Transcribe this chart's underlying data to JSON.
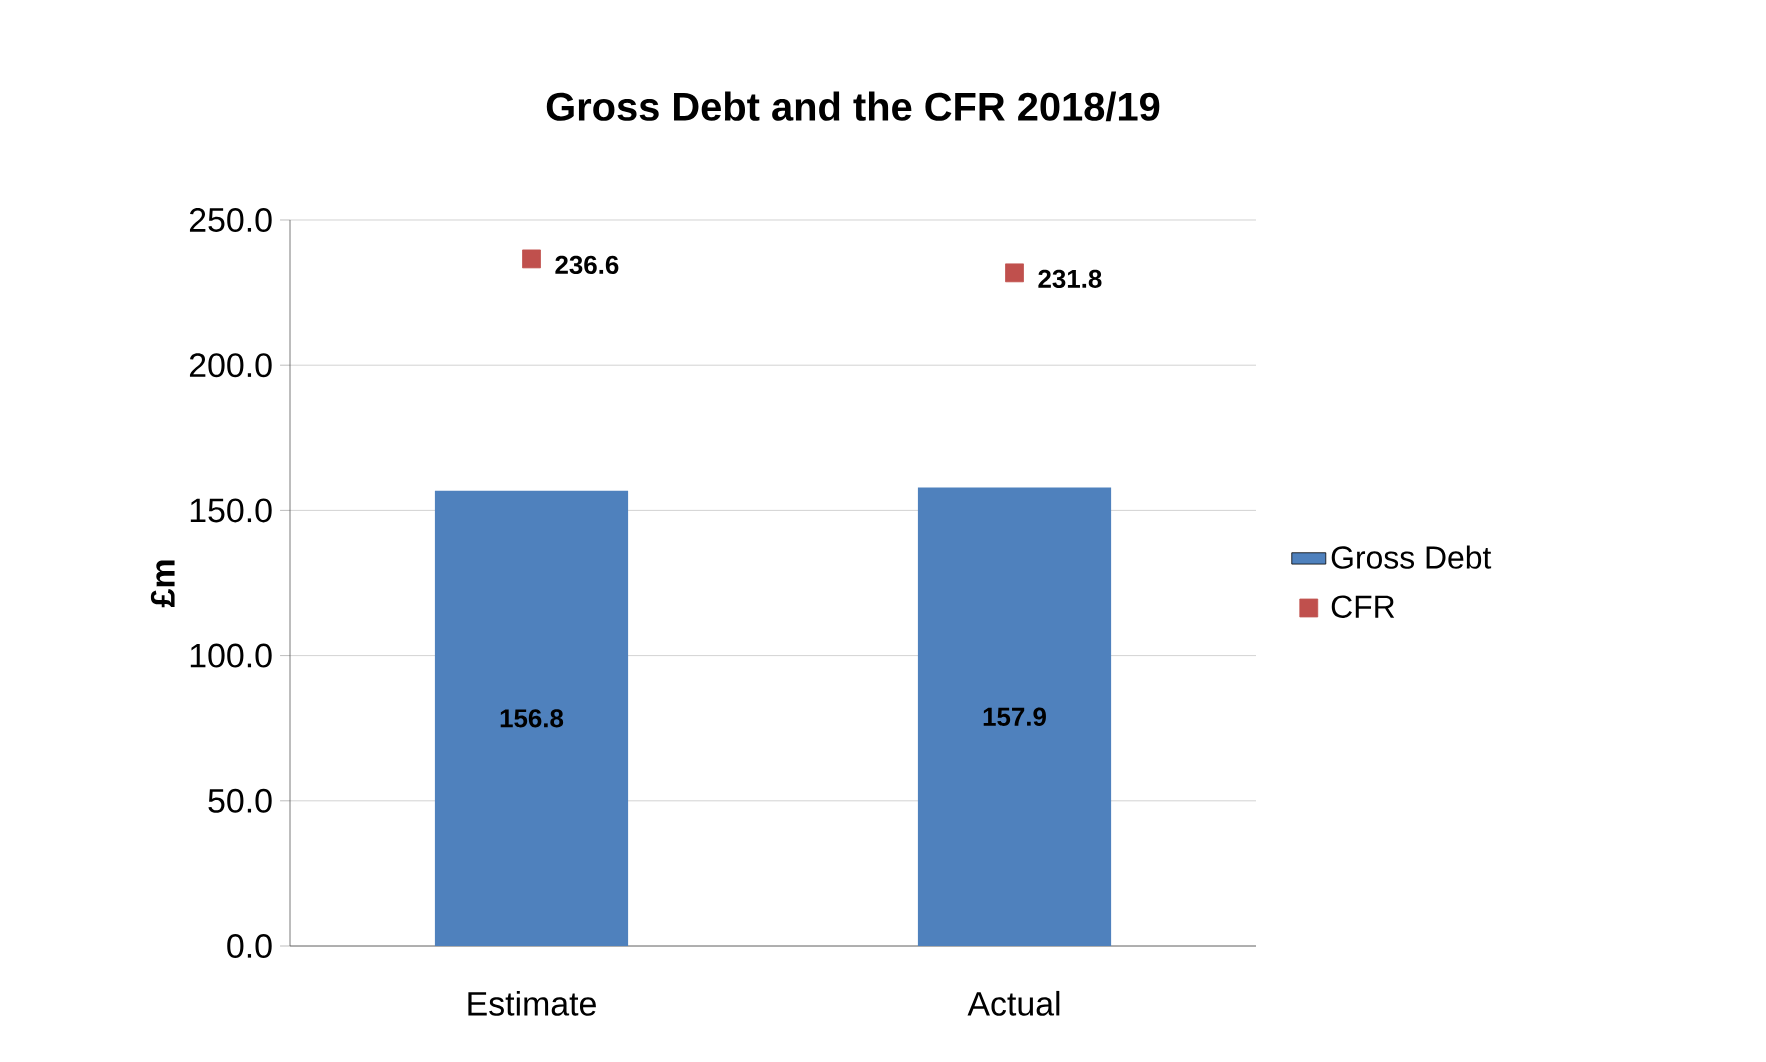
{
  "chart_data": {
    "type": "bar",
    "title": "Gross Debt and the CFR 2018/19",
    "ylabel": "£m",
    "categories": [
      "Estimate",
      "Actual"
    ],
    "series": [
      {
        "name": "Gross Debt",
        "color": "#4f81bd",
        "values": [
          156.8,
          157.9
        ]
      },
      {
        "name": "CFR",
        "type": "scatter",
        "color": "#c0504d",
        "marker": "square",
        "values": [
          236.6,
          231.8
        ]
      }
    ],
    "ylim": [
      0,
      250
    ],
    "yticks": [
      {
        "value": 0,
        "label": "0.0"
      },
      {
        "value": 50,
        "label": "50.0"
      },
      {
        "value": 100,
        "label": "100.0"
      },
      {
        "value": 150,
        "label": "150.0"
      },
      {
        "value": 200,
        "label": "200.0"
      },
      {
        "value": 250,
        "label": "250.0"
      }
    ],
    "grid": "y",
    "legend": "right",
    "data_labels": true
  }
}
